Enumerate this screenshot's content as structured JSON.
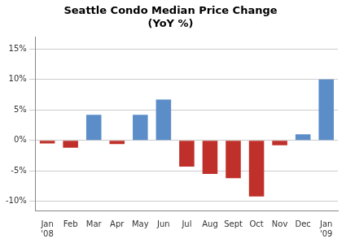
{
  "chart_data": {
    "type": "bar",
    "title": "Seattle Condo Median Price Change\n(YoY %)",
    "categories": [
      "Jan\n'08",
      "Feb",
      "Mar",
      "Apr",
      "May",
      "Jun",
      "Jul",
      "Aug",
      "Sept",
      "Oct",
      "Nov",
      "Dec",
      "Jan\n'09"
    ],
    "values": [
      -0.5,
      -1.2,
      4.2,
      -0.6,
      4.2,
      6.7,
      -4.3,
      -5.5,
      -6.2,
      -9.2,
      -0.8,
      1.0,
      10.0
    ],
    "colors": [
      "#c0302a",
      "#c0302a",
      "#5b8dc8",
      "#c0302a",
      "#5b8dc8",
      "#5b8dc8",
      "#c0302a",
      "#c0302a",
      "#c0302a",
      "#c0302a",
      "#c0302a",
      "#5b8dc8",
      "#5b8dc8"
    ],
    "ylim": [
      -11.5,
      17
    ],
    "yticks": [
      {
        "value": -10,
        "label": "-10%"
      },
      {
        "value": -5,
        "label": "-5%"
      },
      {
        "value": 0,
        "label": "0%"
      },
      {
        "value": 5,
        "label": "5%"
      },
      {
        "value": 10,
        "label": "10%"
      },
      {
        "value": 15,
        "label": "15%"
      }
    ],
    "grid": true
  }
}
